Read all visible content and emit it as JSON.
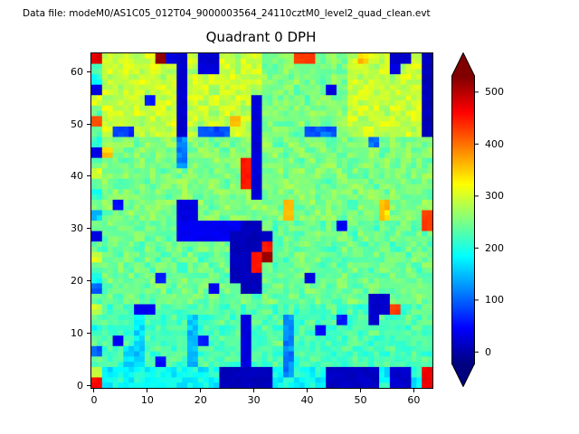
{
  "header": {
    "datafile_label": "Data file: modeM0/AS1C05_012T04_9000003564_24110cztM0_level2_quad_clean.evt"
  },
  "chart_data": {
    "type": "heatmap",
    "title": "Quadrant 0 DPH",
    "xlabel": "",
    "ylabel": "",
    "x_range": [
      0,
      64
    ],
    "y_range": [
      0,
      64
    ],
    "x_ticks": [
      0,
      10,
      20,
      30,
      40,
      50,
      60
    ],
    "y_ticks": [
      0,
      10,
      20,
      30,
      40,
      50,
      60
    ],
    "colormap": "jet",
    "vmin": -22,
    "vmax": 531,
    "colorbar": {
      "ticks": [
        0,
        100,
        200,
        300,
        400,
        500
      ],
      "extend": "both"
    },
    "grid_resolution": [
      32,
      32
    ],
    "values": [
      [
        480,
        300,
        290,
        300,
        280,
        300,
        520,
        30,
        20,
        290,
        20,
        20,
        300,
        280,
        300,
        290,
        250,
        260,
        250,
        430,
        430,
        250,
        260,
        250,
        290,
        350,
        300,
        290,
        20,
        20,
        300,
        10
      ],
      [
        240,
        300,
        280,
        310,
        290,
        300,
        300,
        290,
        20,
        280,
        30,
        30,
        300,
        280,
        300,
        300,
        250,
        240,
        260,
        250,
        250,
        260,
        250,
        240,
        290,
        300,
        280,
        300,
        30,
        280,
        300,
        10
      ],
      [
        200,
        290,
        300,
        280,
        300,
        290,
        280,
        300,
        20,
        300,
        280,
        300,
        290,
        300,
        280,
        290,
        260,
        250,
        240,
        260,
        250,
        240,
        260,
        250,
        300,
        280,
        300,
        290,
        280,
        300,
        290,
        10
      ],
      [
        30,
        300,
        280,
        300,
        290,
        280,
        300,
        290,
        20,
        280,
        300,
        280,
        300,
        290,
        300,
        280,
        250,
        260,
        250,
        240,
        260,
        250,
        30,
        260,
        280,
        300,
        290,
        280,
        300,
        280,
        300,
        10
      ],
      [
        300,
        280,
        300,
        290,
        300,
        60,
        290,
        300,
        20,
        300,
        290,
        300,
        280,
        300,
        290,
        25,
        240,
        250,
        260,
        250,
        240,
        260,
        250,
        240,
        300,
        290,
        280,
        300,
        280,
        300,
        290,
        10
      ],
      [
        240,
        300,
        290,
        280,
        300,
        290,
        300,
        280,
        20,
        290,
        300,
        280,
        300,
        290,
        280,
        25,
        250,
        260,
        240,
        250,
        260,
        250,
        240,
        260,
        290,
        300,
        300,
        280,
        300,
        290,
        300,
        10
      ],
      [
        420,
        280,
        300,
        300,
        280,
        300,
        290,
        300,
        20,
        300,
        280,
        300,
        290,
        360,
        300,
        25,
        260,
        240,
        250,
        260,
        250,
        240,
        250,
        260,
        300,
        280,
        290,
        300,
        290,
        280,
        300,
        10
      ],
      [
        240,
        300,
        80,
        80,
        300,
        280,
        300,
        290,
        20,
        280,
        90,
        90,
        90,
        300,
        290,
        25,
        250,
        260,
        250,
        240,
        100,
        100,
        100,
        250,
        280,
        300,
        300,
        290,
        300,
        300,
        280,
        10
      ],
      [
        200,
        260,
        250,
        260,
        240,
        260,
        250,
        260,
        120,
        260,
        250,
        240,
        260,
        250,
        260,
        25,
        260,
        240,
        260,
        250,
        260,
        250,
        240,
        260,
        250,
        260,
        100,
        250,
        260,
        250,
        260,
        240
      ],
      [
        30,
        350,
        260,
        250,
        260,
        250,
        260,
        240,
        120,
        250,
        260,
        250,
        240,
        260,
        250,
        25,
        250,
        260,
        240,
        260,
        250,
        260,
        250,
        240,
        260,
        250,
        260,
        240,
        250,
        260,
        250,
        260
      ],
      [
        240,
        260,
        250,
        240,
        260,
        250,
        260,
        250,
        120,
        260,
        240,
        260,
        250,
        260,
        450,
        25,
        260,
        250,
        260,
        240,
        260,
        250,
        260,
        250,
        240,
        260,
        250,
        260,
        240,
        260,
        250,
        240
      ],
      [
        300,
        250,
        260,
        260,
        250,
        260,
        240,
        260,
        250,
        260,
        250,
        250,
        260,
        240,
        450,
        25,
        250,
        260,
        250,
        260,
        240,
        260,
        250,
        260,
        250,
        240,
        260,
        250,
        260,
        250,
        260,
        260
      ],
      [
        240,
        260,
        240,
        250,
        260,
        240,
        260,
        250,
        260,
        250,
        260,
        260,
        240,
        260,
        450,
        25,
        260,
        240,
        260,
        250,
        260,
        250,
        240,
        260,
        260,
        250,
        240,
        260,
        250,
        260,
        240,
        250
      ],
      [
        200,
        250,
        260,
        260,
        250,
        260,
        250,
        240,
        260,
        250,
        240,
        250,
        260,
        250,
        260,
        25,
        240,
        260,
        250,
        260,
        250,
        240,
        260,
        250,
        250,
        260,
        260,
        240,
        260,
        250,
        260,
        240
      ],
      [
        240,
        260,
        50,
        250,
        260,
        250,
        260,
        260,
        30,
        30,
        260,
        240,
        260,
        250,
        250,
        260,
        260,
        250,
        360,
        250,
        260,
        250,
        250,
        260,
        240,
        260,
        250,
        350,
        260,
        240,
        250,
        260
      ],
      [
        150,
        240,
        260,
        260,
        250,
        260,
        240,
        250,
        30,
        30,
        250,
        260,
        240,
        260,
        250,
        250,
        250,
        260,
        360,
        260,
        250,
        260,
        260,
        240,
        260,
        250,
        260,
        350,
        250,
        260,
        260,
        430
      ],
      [
        240,
        250,
        240,
        250,
        230,
        250,
        240,
        250,
        40,
        40,
        40,
        40,
        40,
        40,
        10,
        10,
        250,
        230,
        250,
        240,
        250,
        230,
        250,
        40,
        250,
        240,
        230,
        250,
        240,
        250,
        230,
        430
      ],
      [
        30,
        240,
        250,
        230,
        250,
        240,
        250,
        230,
        40,
        40,
        40,
        40,
        40,
        10,
        10,
        10,
        10,
        240,
        250,
        230,
        240,
        250,
        240,
        250,
        230,
        250,
        240,
        230,
        250,
        240,
        250,
        240
      ],
      [
        240,
        230,
        250,
        240,
        230,
        250,
        240,
        250,
        250,
        230,
        250,
        240,
        250,
        10,
        10,
        10,
        450,
        230,
        250,
        240,
        250,
        240,
        230,
        250,
        250,
        230,
        240,
        250,
        230,
        250,
        240,
        230
      ],
      [
        300,
        250,
        230,
        250,
        240,
        250,
        230,
        240,
        240,
        250,
        230,
        250,
        240,
        10,
        10,
        450,
        520,
        250,
        230,
        250,
        230,
        250,
        240,
        230,
        240,
        250,
        250,
        240,
        250,
        230,
        250,
        240
      ],
      [
        240,
        240,
        250,
        230,
        250,
        230,
        250,
        250,
        230,
        240,
        250,
        230,
        250,
        10,
        10,
        450,
        240,
        230,
        250,
        240,
        250,
        230,
        250,
        240,
        250,
        240,
        230,
        250,
        240,
        250,
        230,
        250
      ],
      [
        200,
        250,
        240,
        250,
        230,
        250,
        60,
        240,
        250,
        230,
        240,
        250,
        230,
        10,
        10,
        10,
        250,
        240,
        230,
        250,
        30,
        250,
        240,
        250,
        230,
        250,
        240,
        230,
        250,
        240,
        250,
        230
      ],
      [
        100,
        230,
        250,
        240,
        250,
        240,
        250,
        230,
        250,
        240,
        250,
        40,
        250,
        230,
        10,
        10,
        240,
        250,
        240,
        230,
        250,
        240,
        230,
        250,
        240,
        230,
        250,
        240,
        230,
        250,
        240,
        250
      ],
      [
        240,
        250,
        230,
        250,
        240,
        230,
        250,
        240,
        230,
        250,
        240,
        250,
        230,
        240,
        250,
        230,
        250,
        240,
        250,
        240,
        230,
        250,
        240,
        230,
        250,
        240,
        20,
        20,
        240,
        230,
        250,
        240
      ],
      [
        300,
        220,
        230,
        220,
        40,
        40,
        230,
        220,
        230,
        220,
        230,
        240,
        220,
        230,
        220,
        230,
        240,
        220,
        230,
        220,
        230,
        220,
        240,
        220,
        230,
        220,
        20,
        20,
        430,
        220,
        230,
        240
      ],
      [
        240,
        230,
        220,
        230,
        170,
        230,
        220,
        240,
        220,
        150,
        220,
        230,
        240,
        220,
        30,
        230,
        220,
        230,
        120,
        220,
        230,
        220,
        230,
        60,
        220,
        230,
        20,
        230,
        220,
        240,
        220,
        230
      ],
      [
        200,
        220,
        230,
        220,
        170,
        220,
        230,
        220,
        230,
        150,
        220,
        230,
        220,
        230,
        30,
        220,
        230,
        220,
        120,
        230,
        220,
        50,
        220,
        230,
        230,
        220,
        240,
        220,
        230,
        220,
        230,
        220
      ],
      [
        240,
        230,
        40,
        230,
        170,
        230,
        220,
        230,
        220,
        150,
        60,
        220,
        230,
        220,
        30,
        230,
        220,
        240,
        120,
        220,
        230,
        220,
        230,
        220,
        240,
        230,
        220,
        230,
        220,
        230,
        220,
        230
      ],
      [
        100,
        220,
        230,
        160,
        160,
        220,
        230,
        220,
        230,
        150,
        220,
        230,
        220,
        230,
        30,
        220,
        230,
        220,
        120,
        230,
        220,
        230,
        220,
        230,
        220,
        220,
        230,
        220,
        230,
        220,
        230,
        220
      ],
      [
        240,
        230,
        220,
        160,
        160,
        230,
        50,
        230,
        220,
        150,
        230,
        220,
        230,
        220,
        30,
        230,
        220,
        230,
        120,
        220,
        230,
        220,
        230,
        220,
        230,
        230,
        220,
        230,
        220,
        230,
        220,
        230
      ],
      [
        300,
        180,
        200,
        180,
        200,
        180,
        200,
        180,
        200,
        200,
        180,
        200,
        10,
        10,
        10,
        10,
        10,
        200,
        120,
        200,
        180,
        200,
        15,
        15,
        15,
        15,
        15,
        180,
        20,
        20,
        200,
        470
      ],
      [
        460,
        180,
        200,
        180,
        200,
        200,
        180,
        200,
        180,
        180,
        200,
        180,
        10,
        10,
        10,
        10,
        10,
        180,
        200,
        180,
        200,
        180,
        15,
        15,
        15,
        15,
        15,
        200,
        20,
        20,
        180,
        470
      ]
    ]
  }
}
